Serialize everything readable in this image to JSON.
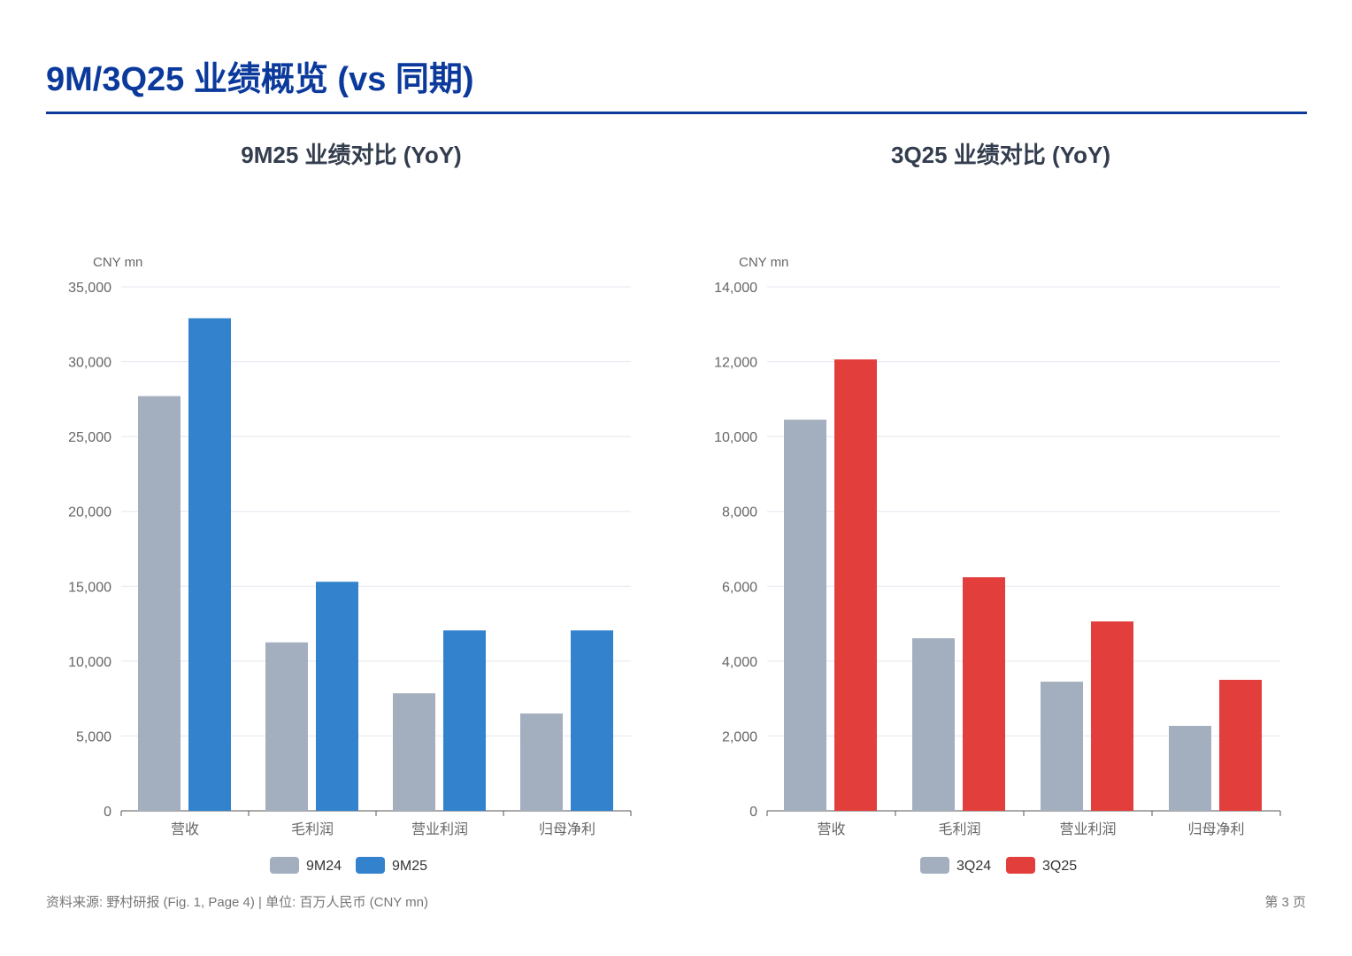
{
  "header": {
    "title": "9M/3Q25 业绩概览 (vs 同期)"
  },
  "footer": {
    "source": "资料来源: 野村研报 (Fig. 1, Page 4) | 单位: 百万人民币 (CNY mn)",
    "page": "第 3 页"
  },
  "chart_data": [
    {
      "type": "bar",
      "title": "9M25 业绩对比 (YoY)",
      "ylabel": "CNY mn",
      "ylim": [
        0,
        35000
      ],
      "yticks": [
        "0",
        "5,000",
        "10,000",
        "15,000",
        "20,000",
        "25,000",
        "30,000",
        "35,000"
      ],
      "categories": [
        "营收",
        "毛利润",
        "营业利润",
        "归母净利"
      ],
      "series": [
        {
          "name": "9M24",
          "color": "#a3afbf",
          "values": [
            27700,
            11250,
            7850,
            6500
          ]
        },
        {
          "name": "9M25",
          "color": "#3282ce",
          "values": [
            32900,
            15300,
            12050,
            12050
          ]
        }
      ],
      "grid": true,
      "legend": "bottom"
    },
    {
      "type": "bar",
      "title": "3Q25 业绩对比 (YoY)",
      "ylabel": "CNY mn",
      "ylim": [
        0,
        14000
      ],
      "yticks": [
        "0",
        "2,000",
        "4,000",
        "6,000",
        "8,000",
        "10,000",
        "12,000",
        "14,000"
      ],
      "categories": [
        "营收",
        "毛利润",
        "营业利润",
        "归母净利"
      ],
      "series": [
        {
          "name": "3Q24",
          "color": "#a3afbf",
          "values": [
            10450,
            4610,
            3450,
            2270
          ]
        },
        {
          "name": "3Q25",
          "color": "#e23e3b",
          "values": [
            12060,
            6240,
            5060,
            3500
          ]
        }
      ],
      "grid": true,
      "legend": "bottom"
    }
  ]
}
